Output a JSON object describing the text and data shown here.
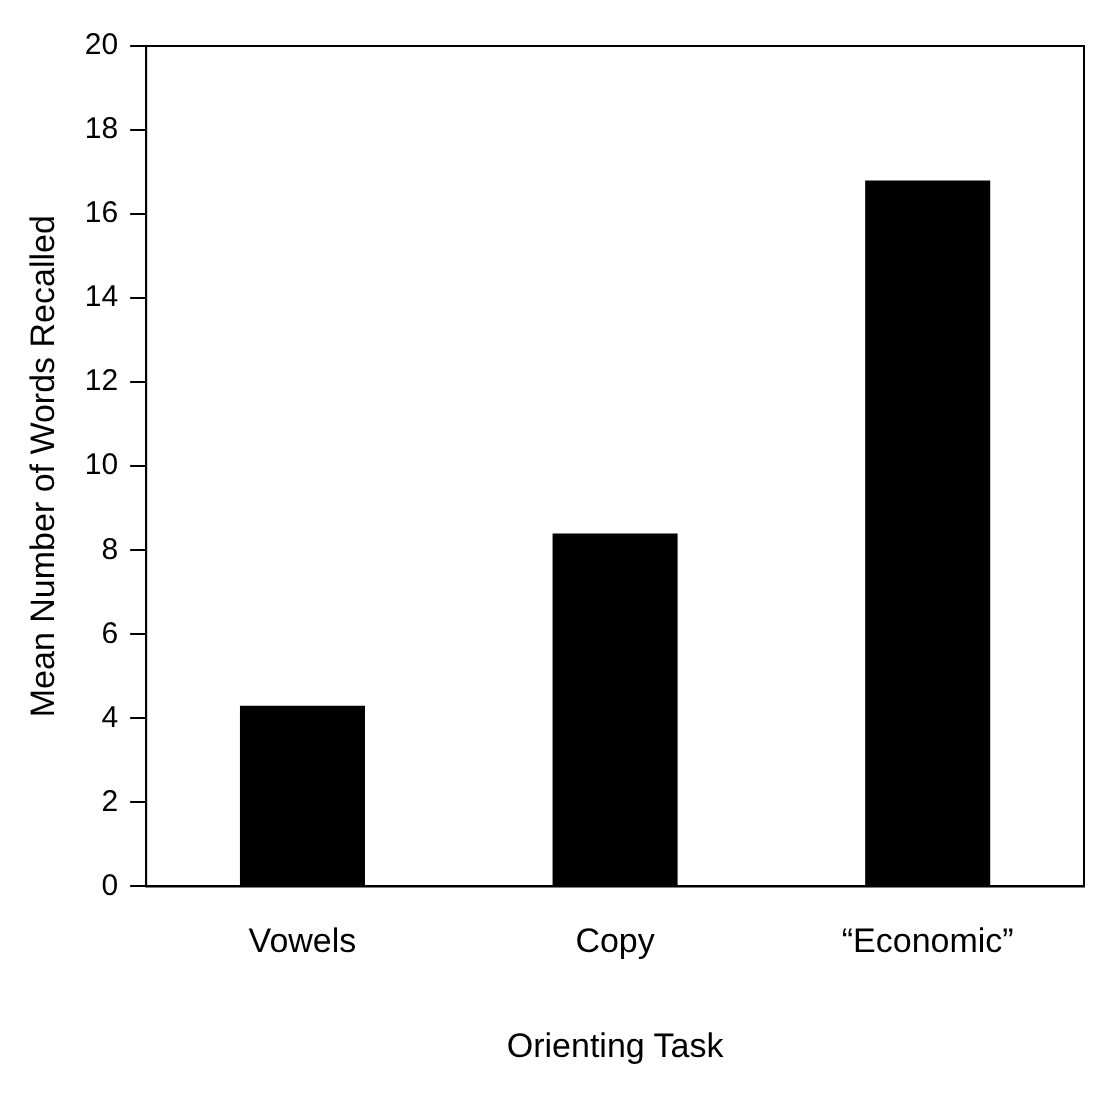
{
  "chart_data": {
    "type": "bar",
    "xlabel": "Orienting Task",
    "ylabel": "Mean Number of Words Recalled",
    "categories": [
      "Vowels",
      "Copy",
      "“Economic”"
    ],
    "values": [
      4.3,
      8.4,
      16.8
    ],
    "color": "#000000",
    "ylim": [
      0,
      20
    ],
    "yticks": [
      0,
      2,
      4,
      6,
      8,
      10,
      12,
      14,
      16,
      18,
      20
    ],
    "grid": false,
    "legend": false
  }
}
